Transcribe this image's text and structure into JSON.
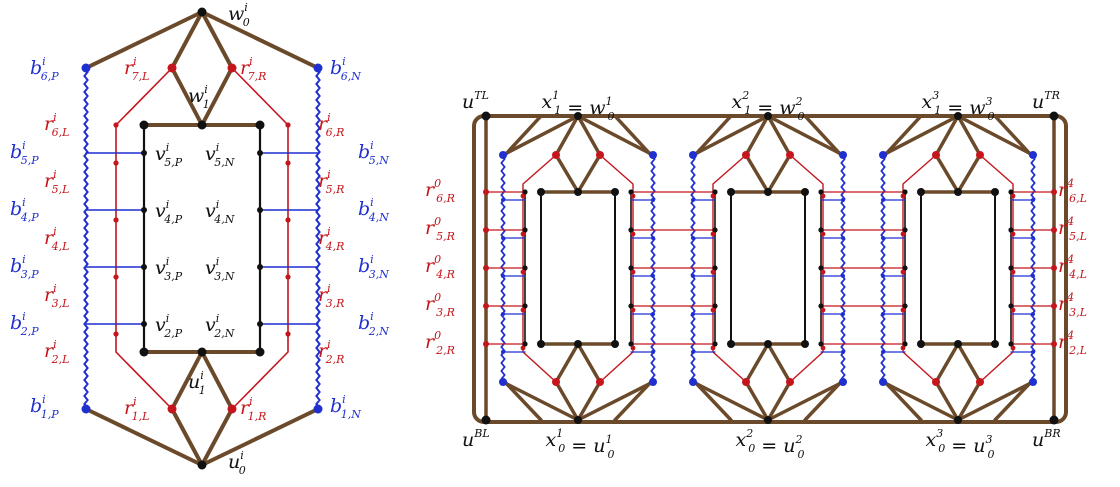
{
  "colors": {
    "brown": "#6b4a2b",
    "red": "#c4161c",
    "blue": "#1f2fd0",
    "black": "#111111"
  },
  "left_gadget": {
    "labels": {
      "w0": {
        "m": "w",
        "sub": "0",
        "sup": "i"
      },
      "w1": {
        "m": "w",
        "sub": "1",
        "sup": "i"
      },
      "u0": {
        "m": "u",
        "sub": "0",
        "sup": "i"
      },
      "u1": {
        "m": "u",
        "sub": "1",
        "sup": "i"
      },
      "b6P": {
        "m": "b",
        "sub": "6,P",
        "sup": "i"
      },
      "b6N": {
        "m": "b",
        "sub": "6,N",
        "sup": "i"
      },
      "b5P": {
        "m": "b",
        "sub": "5,P",
        "sup": "i"
      },
      "b5N": {
        "m": "b",
        "sub": "5,N",
        "sup": "i"
      },
      "b4P": {
        "m": "b",
        "sub": "4,P",
        "sup": "i"
      },
      "b4N": {
        "m": "b",
        "sub": "4,N",
        "sup": "i"
      },
      "b3P": {
        "m": "b",
        "sub": "3,P",
        "sup": "i"
      },
      "b3N": {
        "m": "b",
        "sub": "3,N",
        "sup": "i"
      },
      "b2P": {
        "m": "b",
        "sub": "2,P",
        "sup": "i"
      },
      "b2N": {
        "m": "b",
        "sub": "2,N",
        "sup": "i"
      },
      "b1P": {
        "m": "b",
        "sub": "1,P",
        "sup": "i"
      },
      "b1N": {
        "m": "b",
        "sub": "1,N",
        "sup": "i"
      },
      "r7L": {
        "m": "r",
        "sub": "7,L",
        "sup": "i"
      },
      "r7R": {
        "m": "r",
        "sub": "7,R",
        "sup": "i"
      },
      "r6L": {
        "m": "r",
        "sub": "6,L",
        "sup": "i"
      },
      "r6R": {
        "m": "r",
        "sub": "6,R",
        "sup": "i"
      },
      "r5L": {
        "m": "r",
        "sub": "5,L",
        "sup": "i"
      },
      "r5R": {
        "m": "r",
        "sub": "5,R",
        "sup": "i"
      },
      "r4L": {
        "m": "r",
        "sub": "4,L",
        "sup": "i"
      },
      "r4R": {
        "m": "r",
        "sub": "4,R",
        "sup": "i"
      },
      "r3L": {
        "m": "r",
        "sub": "3,L",
        "sup": "i"
      },
      "r3R": {
        "m": "r",
        "sub": "3,R",
        "sup": "i"
      },
      "r2L": {
        "m": "r",
        "sub": "2,L",
        "sup": "i"
      },
      "r2R": {
        "m": "r",
        "sub": "2,R",
        "sup": "i"
      },
      "r1L": {
        "m": "r",
        "sub": "1,L",
        "sup": "i"
      },
      "r1R": {
        "m": "r",
        "sub": "1,R",
        "sup": "i"
      },
      "v5P": {
        "m": "v",
        "sub": "5,P",
        "sup": "i"
      },
      "v5N": {
        "m": "v",
        "sub": "5,N",
        "sup": "i"
      },
      "v4P": {
        "m": "v",
        "sub": "4,P",
        "sup": "i"
      },
      "v4N": {
        "m": "v",
        "sub": "4,N",
        "sup": "i"
      },
      "v3P": {
        "m": "v",
        "sub": "3,P",
        "sup": "i"
      },
      "v3N": {
        "m": "v",
        "sub": "3,N",
        "sup": "i"
      },
      "v2P": {
        "m": "v",
        "sub": "2,P",
        "sup": "i"
      },
      "v2N": {
        "m": "v",
        "sub": "2,N",
        "sup": "i"
      }
    }
  },
  "right_chain": {
    "labels": {
      "uTL": {
        "m": "u",
        "sup": "TL"
      },
      "uTR": {
        "m": "u",
        "sup": "TR"
      },
      "uBL": {
        "m": "u",
        "sup": "BL"
      },
      "uBR": {
        "m": "u",
        "sup": "BR"
      },
      "top1": {
        "a": {
          "m": "x",
          "sub": "1",
          "sup": "1"
        },
        "b": {
          "m": "w",
          "sub": "0",
          "sup": "1"
        }
      },
      "top2": {
        "a": {
          "m": "x",
          "sub": "1",
          "sup": "2"
        },
        "b": {
          "m": "w",
          "sub": "0",
          "sup": "2"
        }
      },
      "top3": {
        "a": {
          "m": "x",
          "sub": "1",
          "sup": "3"
        },
        "b": {
          "m": "w",
          "sub": "0",
          "sup": "3"
        }
      },
      "bot1": {
        "a": {
          "m": "x",
          "sub": "0",
          "sup": "1"
        },
        "b": {
          "m": "u",
          "sub": "0",
          "sup": "1"
        }
      },
      "bot2": {
        "a": {
          "m": "x",
          "sub": "0",
          "sup": "2"
        },
        "b": {
          "m": "u",
          "sub": "0",
          "sup": "2"
        }
      },
      "bot3": {
        "a": {
          "m": "x",
          "sub": "0",
          "sup": "3"
        },
        "b": {
          "m": "u",
          "sub": "0",
          "sup": "3"
        }
      },
      "r6R0": {
        "m": "r",
        "sub": "6,R",
        "sup": "0"
      },
      "r5R0": {
        "m": "r",
        "sub": "5,R",
        "sup": "0"
      },
      "r4R0": {
        "m": "r",
        "sub": "4,R",
        "sup": "0"
      },
      "r3R0": {
        "m": "r",
        "sub": "3,R",
        "sup": "0"
      },
      "r2R0": {
        "m": "r",
        "sub": "2,R",
        "sup": "0"
      },
      "r6L4": {
        "m": "r",
        "sub": "6,L",
        "sup": "4"
      },
      "r5L4": {
        "m": "r",
        "sub": "5,L",
        "sup": "4"
      },
      "r4L4": {
        "m": "r",
        "sub": "4,L",
        "sup": "4"
      },
      "r3L4": {
        "m": "r",
        "sub": "3,L",
        "sup": "4"
      },
      "r2L4": {
        "m": "r",
        "sub": "2,L",
        "sup": "4"
      }
    }
  }
}
